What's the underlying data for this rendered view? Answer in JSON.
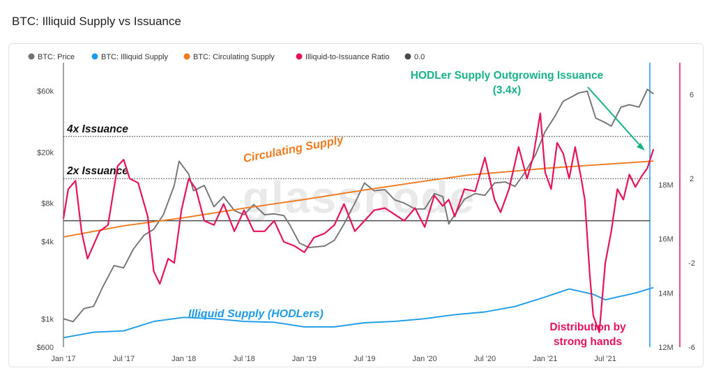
{
  "page": {
    "title": "BTC: Illiquid Supply vs Issuance"
  },
  "watermark": "glassnode",
  "chart_data": {
    "type": "line",
    "legend": {
      "placement": "top-left",
      "items": [
        {
          "label": "BTC: Price",
          "color": "#737373"
        },
        {
          "label": "BTC: Illiquid Supply",
          "color": "#1e9be8"
        },
        {
          "label": "BTC: Circulating Supply",
          "color": "#f07a1e"
        },
        {
          "label": "Illiquid-to-Issuance Ratio",
          "color": "#e8125c"
        },
        {
          "label": "0.0",
          "color": "#4a4a4a"
        }
      ]
    },
    "x_ticks": [
      "Jan '17",
      "Jul '17",
      "Jan '18",
      "Jul '18",
      "Jan '19",
      "Jul '19",
      "Jan '20",
      "Jul '20",
      "Jan '21",
      "Jul '21"
    ],
    "x_range": [
      "2017-01-01",
      "2021-11-15"
    ],
    "y_price": {
      "scale": "log",
      "range": [
        600,
        100000
      ],
      "ticks": [
        "$600",
        "$1k",
        "$4k",
        "$8k",
        "$20k",
        "$60k"
      ],
      "tick_values": [
        600,
        1000,
        4000,
        8000,
        20000,
        60000
      ]
    },
    "y_supply": {
      "range": [
        12,
        22.5
      ],
      "ticks": [
        "12M",
        "14M",
        "16M",
        "18M"
      ],
      "tick_values": [
        12,
        14,
        16,
        18
      ]
    },
    "y_ratio": {
      "range": [
        -6,
        7.5
      ],
      "ticks": [
        "-6",
        "-2",
        "2",
        "6"
      ],
      "tick_values": [
        -6,
        -2,
        2,
        6
      ]
    },
    "reference_lines": [
      {
        "label": "4x Issuance",
        "ratio": 4
      },
      {
        "label": "2x Issuance",
        "ratio": 2
      },
      {
        "label": "0.0",
        "ratio": 0
      }
    ],
    "series": [
      {
        "name": "BTC: Price",
        "axis": "price",
        "color": "#737373",
        "x": [
          2017.0,
          2017.08,
          2017.17,
          2017.25,
          2017.33,
          2017.42,
          2017.5,
          2017.58,
          2017.67,
          2017.75,
          2017.83,
          2017.92,
          2017.96,
          2018.04,
          2018.08,
          2018.17,
          2018.25,
          2018.33,
          2018.42,
          2018.5,
          2018.58,
          2018.67,
          2018.75,
          2018.83,
          2018.88,
          2018.96,
          2019.04,
          2019.17,
          2019.25,
          2019.33,
          2019.42,
          2019.5,
          2019.58,
          2019.67,
          2019.75,
          2019.83,
          2019.92,
          2020.0,
          2020.08,
          2020.15,
          2020.2,
          2020.25,
          2020.33,
          2020.42,
          2020.5,
          2020.58,
          2020.67,
          2020.75,
          2020.83,
          2020.92,
          2021.0,
          2021.08,
          2021.15,
          2021.28,
          2021.35,
          2021.42,
          2021.5,
          2021.55,
          2021.63,
          2021.7,
          2021.78,
          2021.85,
          2021.9
        ],
        "values": [
          1000,
          950,
          1200,
          1250,
          1800,
          2600,
          2500,
          3500,
          4500,
          5000,
          6500,
          11000,
          17000,
          13500,
          10000,
          11000,
          7500,
          9000,
          7000,
          6500,
          7800,
          6500,
          6600,
          6400,
          5400,
          3900,
          3600,
          3700,
          4100,
          5500,
          8000,
          11500,
          10000,
          10200,
          8500,
          8000,
          7200,
          7200,
          9500,
          9000,
          5500,
          6500,
          8600,
          9500,
          9200,
          11500,
          11700,
          10800,
          13800,
          19000,
          29000,
          38000,
          50000,
          58000,
          60000,
          37000,
          34000,
          32000,
          45000,
          47000,
          45000,
          62000,
          57000
        ]
      },
      {
        "name": "BTC: Illiquid Supply",
        "axis": "supply",
        "color": "#1e9be8",
        "x": [
          2017.0,
          2017.25,
          2017.5,
          2017.75,
          2018.0,
          2018.25,
          2018.5,
          2018.75,
          2019.0,
          2019.25,
          2019.5,
          2019.75,
          2020.0,
          2020.25,
          2020.5,
          2020.75,
          2021.0,
          2021.1,
          2021.2,
          2021.3,
          2021.4,
          2021.5,
          2021.6,
          2021.75,
          2021.9
        ],
        "values": [
          12.35,
          12.55,
          12.6,
          12.95,
          13.1,
          13.05,
          12.95,
          12.92,
          12.75,
          12.75,
          12.9,
          12.95,
          13.05,
          13.2,
          13.3,
          13.5,
          13.85,
          14.0,
          14.15,
          14.05,
          13.95,
          13.75,
          13.85,
          14.0,
          14.2
        ]
      },
      {
        "name": "BTC: Circulating Supply",
        "axis": "supply",
        "color": "#f07a1e",
        "x": [
          2017.0,
          2017.5,
          2018.0,
          2018.5,
          2019.0,
          2019.5,
          2020.0,
          2020.37,
          2020.75,
          2021.0,
          2021.5,
          2021.9
        ],
        "values": [
          16.07,
          16.48,
          16.78,
          17.13,
          17.45,
          17.8,
          18.13,
          18.36,
          18.5,
          18.6,
          18.75,
          18.87
        ]
      },
      {
        "name": "Illiquid-to-Issuance Ratio",
        "axis": "ratio",
        "color": "#e8125c",
        "x": [
          2017.0,
          2017.04,
          2017.1,
          2017.15,
          2017.2,
          2017.3,
          2017.37,
          2017.45,
          2017.5,
          2017.55,
          2017.62,
          2017.7,
          2017.75,
          2017.8,
          2017.87,
          2017.92,
          2017.98,
          2018.04,
          2018.1,
          2018.17,
          2018.25,
          2018.33,
          2018.42,
          2018.5,
          2018.58,
          2018.67,
          2018.75,
          2018.83,
          2018.92,
          2019.0,
          2019.08,
          2019.17,
          2019.25,
          2019.33,
          2019.42,
          2019.5,
          2019.58,
          2019.67,
          2019.75,
          2019.83,
          2019.92,
          2020.0,
          2020.08,
          2020.15,
          2020.2,
          2020.25,
          2020.33,
          2020.42,
          2020.5,
          2020.58,
          2020.63,
          2020.7,
          2020.78,
          2020.85,
          2020.9,
          2020.96,
          2021.0,
          2021.05,
          2021.1,
          2021.15,
          2021.2,
          2021.25,
          2021.3,
          2021.33,
          2021.37,
          2021.4,
          2021.45,
          2021.5,
          2021.55,
          2021.6,
          2021.65,
          2021.7,
          2021.75,
          2021.8,
          2021.85,
          2021.9
        ],
        "values": [
          0.1,
          1.5,
          1.9,
          -0.5,
          -1.8,
          -0.5,
          -0.2,
          2.6,
          2.9,
          2.0,
          1.8,
          0.2,
          -2.4,
          -3.0,
          -1.8,
          -2.0,
          0.5,
          2.0,
          1.5,
          0.0,
          -0.2,
          0.8,
          -0.5,
          0.5,
          -0.5,
          -0.5,
          0.0,
          -1.0,
          -1.2,
          -1.5,
          -0.8,
          -0.6,
          -0.2,
          0.8,
          -0.5,
          0.0,
          0.5,
          0.6,
          0.3,
          0.0,
          0.6,
          -0.3,
          1.2,
          0.7,
          1.0,
          0.2,
          1.5,
          1.4,
          3.0,
          1.0,
          0.4,
          1.5,
          3.5,
          2.0,
          3.0,
          5.1,
          2.3,
          1.5,
          3.7,
          3.2,
          2.0,
          3.5,
          2.0,
          1.0,
          -2.5,
          -4.5,
          -5.3,
          -2.0,
          -0.5,
          1.5,
          1.0,
          2.2,
          1.6,
          2.1,
          2.5,
          3.4
        ]
      }
    ],
    "annotations": [
      {
        "text": "HODLer Supply Outgrowing Issuance",
        "color": "#16b38a"
      },
      {
        "text": "(3.4x)",
        "color": "#16b38a"
      },
      {
        "text": "Circulating Supply",
        "color": "#f07a1e"
      },
      {
        "text": "Illiquid Supply (HODLers)",
        "color": "#1e9be8"
      },
      {
        "text": "Distribution by",
        "color": "#e8125c"
      },
      {
        "text": "strong hands",
        "color": "#e8125c"
      }
    ]
  }
}
